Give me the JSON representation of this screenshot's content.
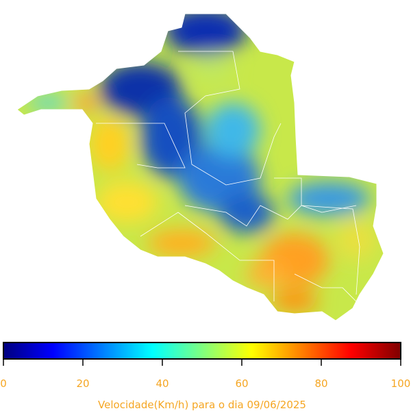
{
  "colorbar": {
    "lim": [
      0,
      100
    ],
    "ticks": [
      0,
      20,
      40,
      60,
      80,
      100
    ],
    "label": "Velocidade(Km/h) para o dia 09/06/2025"
  }
}
